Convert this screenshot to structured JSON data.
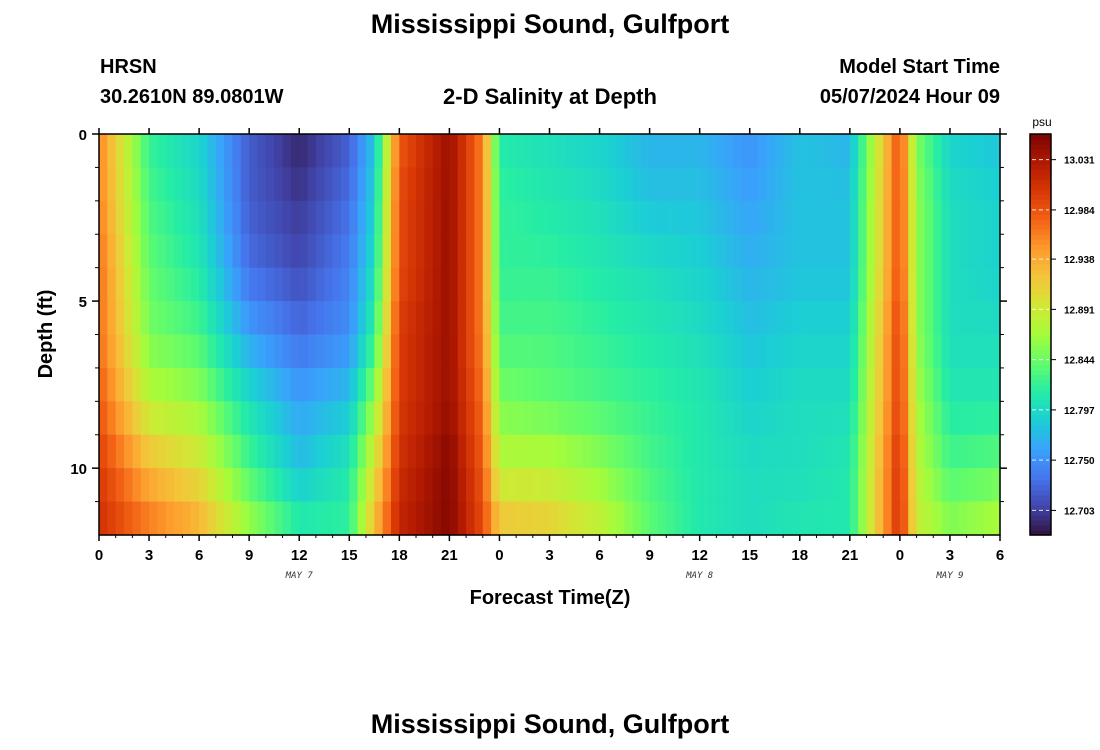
{
  "header": {
    "title": "Mississippi Sound, Gulfport",
    "station": "HRSN",
    "coordinates": "30.2610N  89.0801W",
    "plot_title": "2-D Salinity at Depth",
    "model_start_label": "Model Start Time",
    "model_start_value": "05/07/2024 Hour 09"
  },
  "footer": {
    "title": "Mississippi Sound, Gulfport"
  },
  "chart_data": {
    "type": "heatmap",
    "title": "2-D Salinity at Depth",
    "xlabel": "Forecast Time(Z)",
    "ylabel": "Depth (ft)",
    "x_unit": "hours from 00Z May 7",
    "xlim": [
      0,
      54
    ],
    "ylim": [
      0,
      12
    ],
    "y_inverted": true,
    "x_tick_values": [
      0,
      3,
      6,
      9,
      12,
      15,
      18,
      21,
      24,
      27,
      30,
      33,
      36,
      39,
      42,
      45,
      48,
      51,
      54
    ],
    "x_tick_labels": [
      "0",
      "3",
      "6",
      "9",
      "12",
      "15",
      "18",
      "21",
      "0",
      "3",
      "6",
      "9",
      "12",
      "15",
      "18",
      "21",
      "0",
      "3",
      "6"
    ],
    "y_tick_values": [
      0,
      5,
      10
    ],
    "y_tick_labels": [
      "0",
      "5",
      "10"
    ],
    "date_labels": [
      {
        "text": "MAY 7",
        "x": 12
      },
      {
        "text": "MAY 8",
        "x": 36
      },
      {
        "text": "MAY 9",
        "x": 51
      }
    ],
    "colorbar": {
      "unit": "psu",
      "min": 12.68,
      "max": 13.055,
      "ticks": [
        12.703,
        12.75,
        12.797,
        12.844,
        12.891,
        12.938,
        12.984,
        13.031
      ],
      "tick_labels": [
        "12.703",
        "12.750",
        "12.797",
        "12.844",
        "12.891",
        "12.938",
        "12.984",
        "13.031"
      ],
      "colors": [
        "#30123b",
        "#4145ab",
        "#4675ed",
        "#39a2fc",
        "#1bcfd4",
        "#24eca6",
        "#61fc6c",
        "#a4fc3b",
        "#d1e834",
        "#f3c63a",
        "#fe9b2d",
        "#f36315",
        "#d93806",
        "#b11901",
        "#7a0402"
      ]
    },
    "salinity_grid": {
      "x": [
        0,
        3,
        6,
        9,
        12,
        15,
        16.5,
        18,
        21,
        23,
        24,
        27,
        30,
        33,
        36,
        39,
        42,
        45,
        48,
        49,
        51,
        54
      ],
      "depth": [
        0,
        2,
        4,
        6,
        8,
        10,
        12
      ],
      "values": [
        [
          12.96,
          12.82,
          12.79,
          12.72,
          12.69,
          12.72,
          12.78,
          12.98,
          13.04,
          12.96,
          12.81,
          12.8,
          12.79,
          12.77,
          12.77,
          12.75,
          12.78,
          12.77,
          12.99,
          12.85,
          12.79,
          12.78
        ],
        [
          12.96,
          12.83,
          12.8,
          12.72,
          12.7,
          12.73,
          12.79,
          12.99,
          13.04,
          12.96,
          12.82,
          12.81,
          12.8,
          12.78,
          12.78,
          12.76,
          12.78,
          12.78,
          12.99,
          12.86,
          12.8,
          12.79
        ],
        [
          12.97,
          12.84,
          12.81,
          12.73,
          12.71,
          12.74,
          12.8,
          12.99,
          13.04,
          12.96,
          12.82,
          12.82,
          12.81,
          12.8,
          12.79,
          12.77,
          12.78,
          12.78,
          12.99,
          12.86,
          12.8,
          12.79
        ],
        [
          12.97,
          12.85,
          12.83,
          12.76,
          12.73,
          12.75,
          12.82,
          13.0,
          13.04,
          12.96,
          12.83,
          12.83,
          12.82,
          12.81,
          12.8,
          12.78,
          12.79,
          12.79,
          13.0,
          12.86,
          12.8,
          12.8
        ],
        [
          12.98,
          12.88,
          12.86,
          12.8,
          12.76,
          12.78,
          12.86,
          13.0,
          13.04,
          12.97,
          12.85,
          12.84,
          12.83,
          12.82,
          12.81,
          12.79,
          12.8,
          12.8,
          13.0,
          12.87,
          12.81,
          12.81
        ],
        [
          13.0,
          12.93,
          12.9,
          12.83,
          12.78,
          12.81,
          12.9,
          13.01,
          13.05,
          12.98,
          12.88,
          12.88,
          12.86,
          12.83,
          12.81,
          12.8,
          12.8,
          12.81,
          13.01,
          12.88,
          12.83,
          12.84
        ],
        [
          13.01,
          12.97,
          12.94,
          12.87,
          12.82,
          12.82,
          12.93,
          13.02,
          13.05,
          12.99,
          12.93,
          12.92,
          12.89,
          12.84,
          12.81,
          12.8,
          12.81,
          12.81,
          13.01,
          12.89,
          12.86,
          12.88
        ]
      ]
    }
  }
}
